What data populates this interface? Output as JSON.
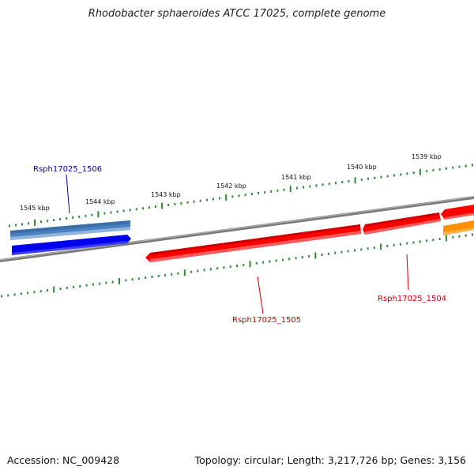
{
  "title": "Rhodobacter sphaeroides ATCC 17025, complete genome",
  "footer": {
    "accession": "Accession: NC_009428",
    "summary": "Topology: circular; Length: 3,217,726 bp; Genes: 3,156"
  },
  "scale_labels": [
    "1545 kbp",
    "1544 kbp",
    "1543 kbp",
    "1542 kbp",
    "1541 kbp",
    "1540 kbp",
    "1539 kbp"
  ],
  "gene_labels": {
    "g1506": "Rsph17025_1506",
    "g1505": "Rsph17025_1505",
    "g1504": "Rsph17025_1504"
  },
  "colors": {
    "backbone": "#808080",
    "tick": "#2e8b2e",
    "gene_forward": "#0000ee",
    "gene_forward_light": "#4a7fc0",
    "gene_reverse": "#ff0000",
    "gene_orange": "#ff9000",
    "label_blue": "#000099",
    "label_red": "#cc0000"
  }
}
